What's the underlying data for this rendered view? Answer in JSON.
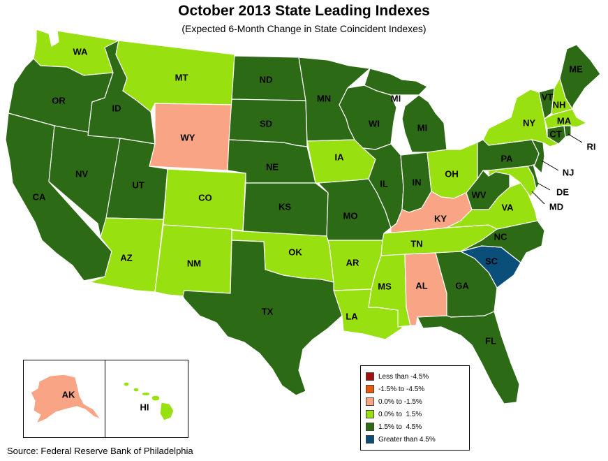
{
  "title": "October 2013 State Leading Indexes",
  "subtitle": "(Expected 6-Month Change in State Coincident Indexes)",
  "source": "Source: Federal Reserve Bank of Philadelphia",
  "colors": {
    "lt_neg45": "#a50f0f",
    "neg45_neg15": "#e8590c",
    "neg15_0": "#f8a485",
    "0_15": "#99e011",
    "15_45": "#2d6a16",
    "gt_45": "#0a4f7a"
  },
  "legend": [
    {
      "key": "lt_neg45",
      "label": "Less than -4.5%"
    },
    {
      "key": "neg45_neg15",
      "label": "-1.5% to -4.5%"
    },
    {
      "key": "neg15_0",
      "label": "0.0% to -1.5%"
    },
    {
      "key": "0_15",
      "label": "0.0% to  1.5%"
    },
    {
      "key": "15_45",
      "label": "1.5% to  4.5%"
    },
    {
      "key": "gt_45",
      "label": "Greater than 4.5%"
    }
  ],
  "states": {
    "WA": "0_15",
    "OR": "15_45",
    "CA": "15_45",
    "NV": "15_45",
    "ID": "15_45",
    "MT": "0_15",
    "WY": "neg15_0",
    "UT": "15_45",
    "AZ": "0_15",
    "CO": "0_15",
    "NM": "0_15",
    "ND": "15_45",
    "SD": "15_45",
    "NE": "15_45",
    "KS": "15_45",
    "OK": "0_15",
    "TX": "15_45",
    "MN": "15_45",
    "IA": "0_15",
    "MO": "15_45",
    "AR": "0_15",
    "LA": "0_15",
    "WI": "15_45",
    "IL": "15_45",
    "MI": "15_45",
    "IN": "15_45",
    "OH": "0_15",
    "KY": "neg15_0",
    "TN": "0_15",
    "MS": "0_15",
    "AL": "neg15_0",
    "GA": "15_45",
    "FL": "15_45",
    "SC": "gt_45",
    "NC": "15_45",
    "VA": "0_15",
    "WV": "15_45",
    "PA": "15_45",
    "NY": "0_15",
    "VT": "15_45",
    "NH": "0_15",
    "ME": "15_45",
    "MA": "0_15",
    "CT": "15_45",
    "RI": "15_45",
    "NJ": "15_45",
    "DE": "15_45",
    "MD": "0_15",
    "AK": "neg15_0",
    "HI": "0_15"
  },
  "labels": {
    "WA": "WA",
    "OR": "OR",
    "CA": "CA",
    "NV": "NV",
    "ID": "ID",
    "MT": "MT",
    "WY": "WY",
    "UT": "UT",
    "AZ": "AZ",
    "CO": "CO",
    "NM": "NM",
    "ND": "ND",
    "SD": "SD",
    "NE": "NE",
    "KS": "KS",
    "OK": "OK",
    "TX": "TX",
    "MN": "MN",
    "IA": "IA",
    "MO": "MO",
    "AR": "AR",
    "LA": "LA",
    "WI": "WI",
    "IL": "IL",
    "MI": "MI",
    "MI2": "MI",
    "IN": "IN",
    "OH": "OH",
    "KY": "KY",
    "TN": "TN",
    "MS": "MS",
    "AL": "AL",
    "GA": "GA",
    "FL": "FL",
    "SC": "SC",
    "NC": "NC",
    "VA": "VA",
    "WV": "WV",
    "PA": "PA",
    "NY": "NY",
    "VT": "VT",
    "NH": "NH",
    "ME": "ME",
    "MA": "MA",
    "CT": "CT",
    "RI": "RI",
    "NJ": "NJ",
    "DE": "DE",
    "MD": "MD",
    "AK": "AK",
    "HI": "HI"
  }
}
